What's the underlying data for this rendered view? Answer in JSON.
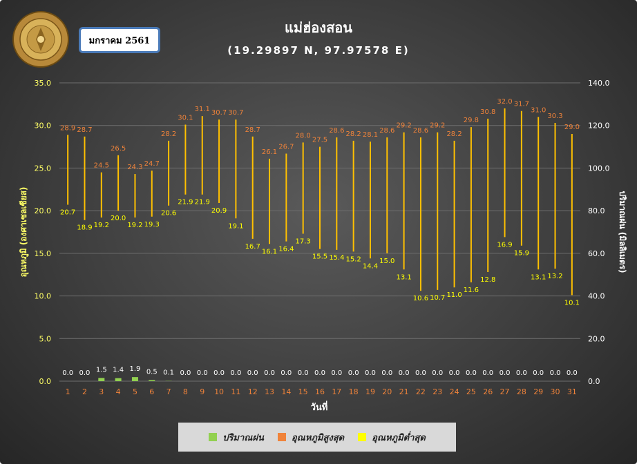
{
  "header": {
    "title": "แม่ฮ่องสอน",
    "subtitle": "(19.29897 N, 97.97578 E)",
    "month_label": "มกราคม 2561",
    "logo_text": "กรมอุตุนิยมวิทยา METEOROLOGICAL DEPARTMENT"
  },
  "colors": {
    "rain": "#92d050",
    "tmax_label": "#f0833a",
    "tmin_label": "#ffff00",
    "range_line": "#ffc000",
    "left_axis": "#ffff66",
    "x_axis": "#f0833a",
    "legend_max": "#f0833a",
    "legend_min": "#ffff00"
  },
  "chart_data": {
    "type": "bar",
    "title": "แม่ฮ่องสอน",
    "subtitle": "(19.29897 N, 97.97578 E)",
    "xlabel": "วันที่",
    "ylabel_left": "อุณหภูมิ (องศาเซลเซียส)",
    "ylabel_right": "ปริมาณฝน (มิลลิเมตร)",
    "ylim_left": [
      0,
      35
    ],
    "yticks_left": [
      "0.0",
      "5.0",
      "10.0",
      "15.0",
      "20.0",
      "25.0",
      "30.0",
      "35.0"
    ],
    "ylim_right": [
      0,
      140
    ],
    "yticks_right": [
      "0.0",
      "20.0",
      "40.0",
      "60.0",
      "80.0",
      "100.0",
      "120.0",
      "140.0"
    ],
    "categories": [
      "1",
      "2",
      "3",
      "4",
      "5",
      "6",
      "7",
      "8",
      "9",
      "10",
      "11",
      "12",
      "13",
      "14",
      "15",
      "16",
      "17",
      "18",
      "19",
      "20",
      "21",
      "22",
      "23",
      "24",
      "25",
      "26",
      "27",
      "28",
      "29",
      "30",
      "31"
    ],
    "series": [
      {
        "name": "ปริมาณฝน",
        "type": "bar",
        "axis": "right",
        "values": [
          0.0,
          0.0,
          1.5,
          1.4,
          1.9,
          0.5,
          0.1,
          0.0,
          0.0,
          0.0,
          0.0,
          0.0,
          0.0,
          0.0,
          0.0,
          0.0,
          0.0,
          0.0,
          0.0,
          0.0,
          0.0,
          0.0,
          0.0,
          0.0,
          0.0,
          0.0,
          0.0,
          0.0,
          0.0,
          0.0,
          0.0
        ]
      },
      {
        "name": "อุณหภูมิสูงสุด",
        "type": "range-high",
        "axis": "left",
        "values": [
          28.9,
          28.7,
          24.5,
          26.5,
          24.3,
          24.7,
          28.2,
          30.1,
          31.1,
          30.7,
          30.7,
          28.7,
          26.1,
          26.7,
          28.0,
          27.5,
          28.6,
          28.2,
          28.1,
          28.6,
          29.2,
          28.6,
          29.2,
          28.2,
          29.8,
          30.8,
          32.0,
          31.7,
          31.0,
          30.3,
          29.0
        ]
      },
      {
        "name": "อุณหภูมิต่ำสุด",
        "type": "range-low",
        "axis": "left",
        "values": [
          20.7,
          18.9,
          19.2,
          20.0,
          19.2,
          19.3,
          20.6,
          21.9,
          21.9,
          20.9,
          19.1,
          16.7,
          16.1,
          16.4,
          17.3,
          15.5,
          15.4,
          15.2,
          14.4,
          15.0,
          13.1,
          10.6,
          10.7,
          11.0,
          11.6,
          12.8,
          16.9,
          15.9,
          13.1,
          13.2,
          10.1
        ]
      }
    ],
    "legend": "bottom",
    "grid": true
  }
}
